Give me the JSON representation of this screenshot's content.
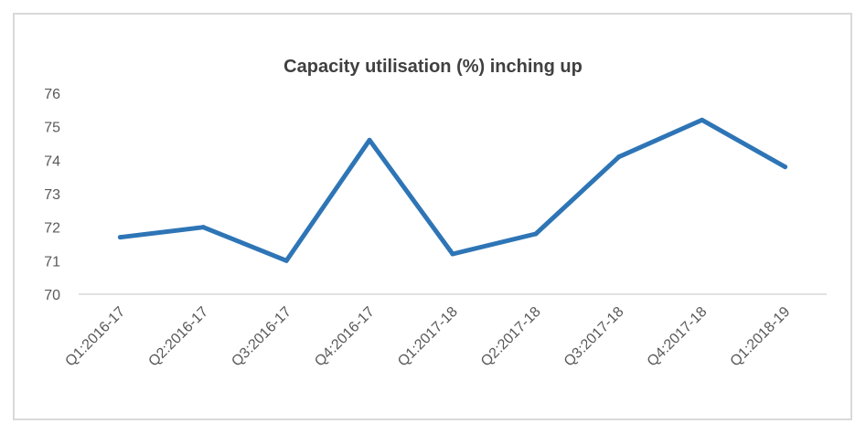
{
  "chart_data": {
    "type": "line",
    "title": "Capacity utilisation (%) inching up",
    "xlabel": "",
    "ylabel": "",
    "categories": [
      "Q1:2016-17",
      "Q2:2016-17",
      "Q3:2016-17",
      "Q4:2016-17",
      "Q1:2017-18",
      "Q2:2017-18",
      "Q3:2017-18",
      "Q4:2017-18",
      "Q1:2018-19"
    ],
    "series": [
      {
        "values": [
          71.7,
          72.0,
          71.0,
          74.6,
          71.2,
          71.8,
          74.1,
          75.2,
          73.8
        ]
      }
    ],
    "ylim": [
      70,
      76
    ],
    "yticks": [
      70,
      71,
      72,
      73,
      74,
      75,
      76
    ],
    "grid": false,
    "legend": "none",
    "colors": {
      "line": "#2e75b6",
      "axis": "#d9d9d9",
      "frame": "#d9d9d9",
      "text": "#595959",
      "title": "#404040"
    }
  }
}
